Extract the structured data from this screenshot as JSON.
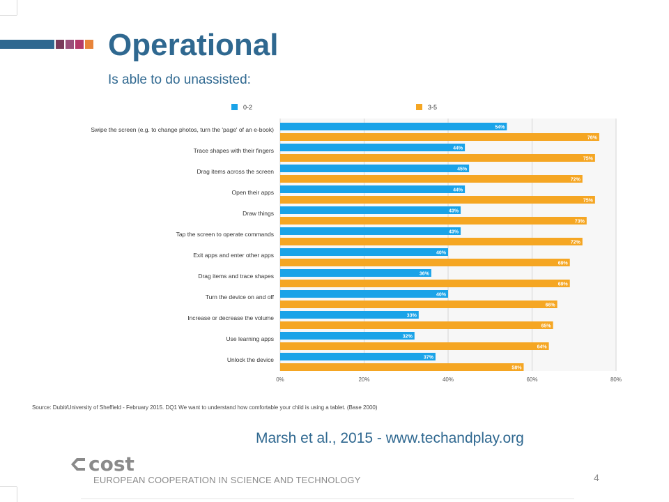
{
  "slide": {
    "title": "Operational",
    "subtitle": "Is able to do unassisted:",
    "source": "Source: Dubit/University of Sheffield - February 2015. DQ1 We want to understand how comfortable your child is using a tablet. (Base 2000)",
    "citation": "Marsh et al., 2015 - www.techandplay.org",
    "org_name": "EUROPEAN COOPERATION IN SCIENCE AND TECHNOLOGY",
    "logo_text": "cost",
    "page_number": "4"
  },
  "colors": {
    "title": "#2f6890",
    "series_0_2": "#1aa3e8",
    "series_3_5": "#f5a623",
    "stripe": [
      "#2f6890",
      "#7a3a5a",
      "#9a4f7a",
      "#b43a6a",
      "#e8843a"
    ]
  },
  "chart_data": {
    "type": "bar",
    "orientation": "horizontal",
    "categories": [
      "Swipe the screen (e.g. to change photos, turn the 'page' of an e-book)",
      "Trace shapes with their fingers",
      "Drag items across the screen",
      "Open their apps",
      "Draw things",
      "Tap the screen to operate commands",
      "Exit apps and enter other apps",
      "Drag items and trace shapes",
      "Turn the device on and off",
      "Increase or decrease the volume",
      "Use learning apps",
      "Unlock the device"
    ],
    "series": [
      {
        "name": "0-2",
        "values": [
          54,
          44,
          45,
          44,
          43,
          43,
          40,
          36,
          40,
          33,
          32,
          37
        ]
      },
      {
        "name": "3-5",
        "values": [
          76,
          75,
          72,
          75,
          73,
          72,
          69,
          69,
          66,
          65,
          64,
          58
        ]
      }
    ],
    "xlim": [
      0,
      80
    ],
    "xticks": [
      "0%",
      "20%",
      "40%",
      "60%",
      "80%"
    ],
    "value_suffix": "%",
    "legend_position": "top",
    "grid": true
  }
}
